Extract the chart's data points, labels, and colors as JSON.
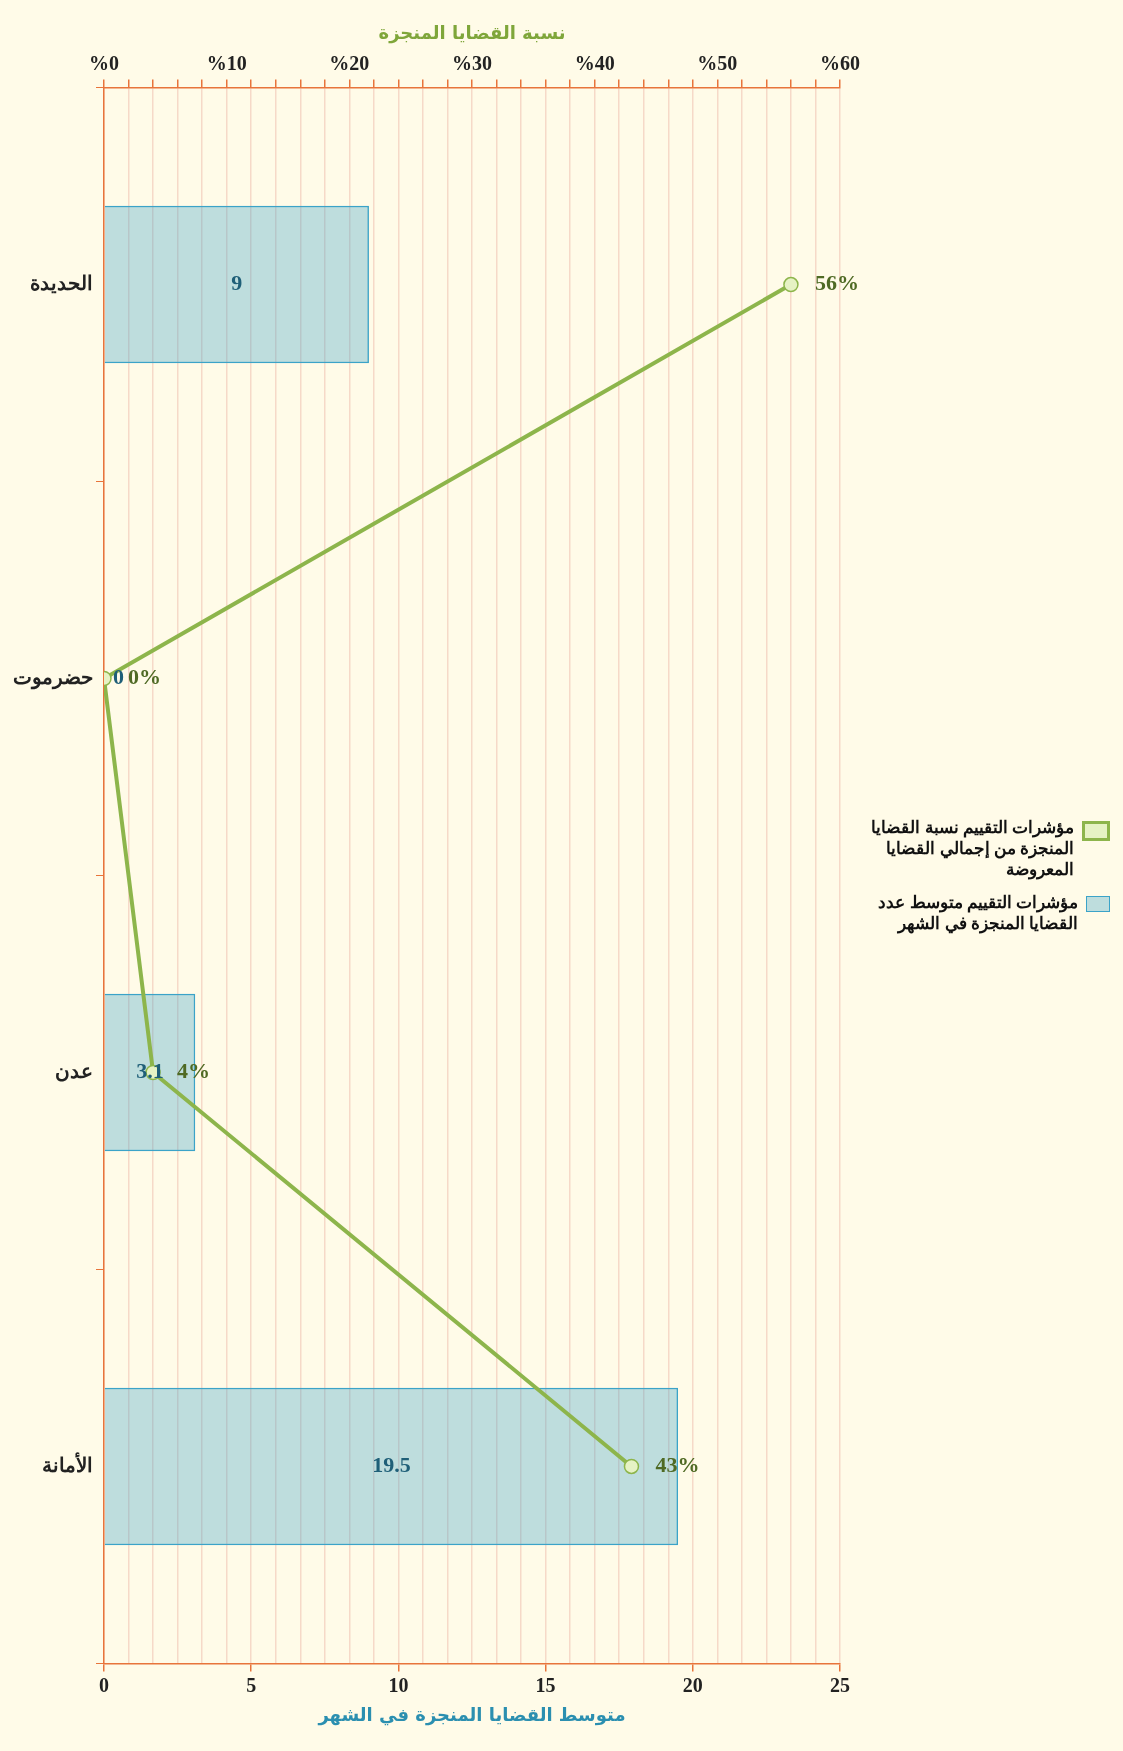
{
  "chart_data": {
    "type": "bar",
    "orientation": "horizontal",
    "categories": [
      "الحديدة",
      "حضرموت",
      "عدن",
      "الأمانة"
    ],
    "xlabel": "متوسط القضايا المنجزة في الشهر",
    "x2label": "نسبة القضايا المنجزة",
    "xlim": [
      0,
      25
    ],
    "xticks": [
      0,
      5,
      10,
      15,
      20,
      25
    ],
    "x2lim": [
      0,
      60
    ],
    "x2ticks": [
      {
        "value": 0,
        "label": "%0"
      },
      {
        "value": 2,
        "label": null
      },
      {
        "value": 4,
        "label": null
      },
      {
        "value": 6,
        "label": null
      },
      {
        "value": 8,
        "label": null
      },
      {
        "value": 10,
        "label": "%10"
      },
      {
        "value": 12,
        "label": null
      },
      {
        "value": 14,
        "label": null
      },
      {
        "value": 16,
        "label": null
      },
      {
        "value": 18,
        "label": null
      },
      {
        "value": 20,
        "label": "%20"
      },
      {
        "value": 22,
        "label": null
      },
      {
        "value": 24,
        "label": null
      },
      {
        "value": 26,
        "label": null
      },
      {
        "value": 28,
        "label": null
      },
      {
        "value": 30,
        "label": "%30"
      },
      {
        "value": 32,
        "label": null
      },
      {
        "value": 34,
        "label": null
      },
      {
        "value": 36,
        "label": null
      },
      {
        "value": 38,
        "label": null
      },
      {
        "value": 40,
        "label": "%40"
      },
      {
        "value": 42,
        "label": null
      },
      {
        "value": 44,
        "label": null
      },
      {
        "value": 46,
        "label": null
      },
      {
        "value": 48,
        "label": null
      },
      {
        "value": 50,
        "label": "%50"
      },
      {
        "value": 52,
        "label": null
      },
      {
        "value": 54,
        "label": null
      },
      {
        "value": 56,
        "label": null
      },
      {
        "value": 58,
        "label": null
      },
      {
        "value": 60,
        "label": "%60"
      }
    ],
    "grid": "x",
    "legend": "right",
    "marker": "circle",
    "line_style": "solid",
    "data_labels": true,
    "series": [
      {
        "name": "مؤشرات التقييم متوسط عدد القضايا المنجزة في الشهر",
        "color": "#3ba3c8",
        "values": [
          9,
          0,
          3.1,
          19.5
        ]
      },
      {
        "name": "مؤشرات التقييم نسبة القضايا المنجزة من إجمالي القضايا المعروضة",
        "type": "line",
        "axis": "x2",
        "color": "#8db54b",
        "values": [
          56,
          0,
          4,
          43
        ],
        "value_labels": [
          "56%",
          "0%",
          "4%",
          "43%"
        ]
      }
    ]
  }
}
